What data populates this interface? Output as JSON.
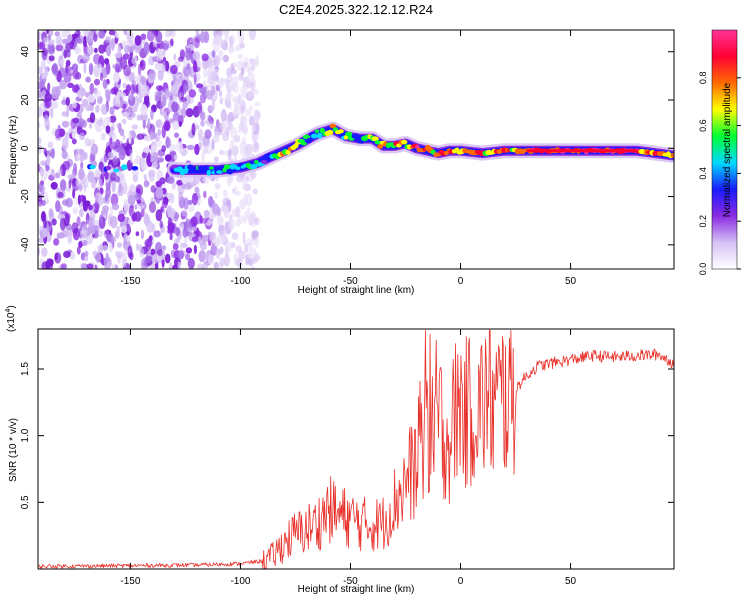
{
  "title": "C2E4.2025.322.12.12.R24",
  "chart_data": [
    {
      "type": "heatmap",
      "xlabel": "Height of straight line (km)",
      "ylabel": "Frequency (Hz)",
      "xlim": [
        -192,
        97
      ],
      "ylim": [
        -50,
        49
      ],
      "xticks": [
        -150,
        -100,
        -50,
        0,
        50
      ],
      "xtick_labels": [
        "-150",
        "-100",
        "-50",
        "0",
        "50"
      ],
      "yticks": [
        -40,
        -20,
        0,
        20,
        40
      ],
      "ytick_labels": [
        "-40",
        "-20",
        "0",
        "20",
        "40"
      ],
      "noise_region_x": [
        -192,
        -92
      ],
      "ridge": {
        "x": [
          -192,
          -170,
          -150,
          -125,
          -110,
          -100,
          -92,
          -85,
          -75,
          -65,
          -58,
          -52,
          -46,
          -40,
          -35,
          -30,
          -25,
          -20,
          -15,
          -10,
          -5,
          0,
          10,
          20,
          30,
          50,
          80,
          97
        ],
        "y": [
          -9,
          -8,
          -8,
          -9,
          -9,
          -8,
          -6,
          -3,
          1,
          6,
          8,
          5,
          4,
          4,
          1,
          1,
          2,
          0,
          -1,
          -2,
          -1,
          -1,
          -2,
          -1,
          -1,
          -1,
          -1,
          -3
        ]
      },
      "colorbar": {
        "label": "Normalized spectral amplitude",
        "range": [
          0,
          1
        ],
        "ticks": [
          0.0,
          0.2,
          0.4,
          0.6,
          0.8
        ],
        "tick_labels": [
          "0.0",
          "0.2",
          "0.4",
          "0.6",
          "0.8"
        ],
        "colors": [
          "#ffffff",
          "#d6c1f4",
          "#8a2be2",
          "#1a1aff",
          "#00d9ff",
          "#00ff33",
          "#ffff00",
          "#ff6a00",
          "#ff0033",
          "#ff3399"
        ]
      }
    },
    {
      "type": "line",
      "xlabel": "Height of straight line (km)",
      "ylabel": "SNR (10 * v/v)",
      "scale_label": "(x10",
      "scale_exponent": "4",
      "scale_close": ")",
      "xlim": [
        -192,
        97
      ],
      "ylim": [
        0,
        18000
      ],
      "xticks": [
        -150,
        -100,
        -50,
        0,
        50
      ],
      "xtick_labels": [
        "-150",
        "-100",
        "-50",
        "0",
        "50"
      ],
      "yticks": [
        5000,
        10000,
        15000
      ],
      "ytick_labels": [
        "0.5",
        "1.0",
        "1.5"
      ],
      "series_color": "#e8302a",
      "series": [
        {
          "name": "SNR",
          "x": [
            -192,
            -150,
            -120,
            -110,
            -100,
            -90,
            -85,
            -80,
            -75,
            -70,
            -65,
            -60,
            -55,
            -50,
            -45,
            -40,
            -35,
            -30,
            -25,
            -20,
            -17,
            -14,
            -12,
            -10,
            -8,
            -5,
            -2,
            0,
            3,
            6,
            9,
            12,
            15,
            20,
            25,
            30,
            35,
            40,
            50,
            60,
            70,
            80,
            90,
            97
          ],
          "y": [
            200,
            250,
            300,
            350,
            400,
            600,
            1000,
            2000,
            2600,
            3000,
            3400,
            4500,
            4000,
            3800,
            3400,
            3300,
            3500,
            5000,
            6500,
            8000,
            9800,
            10400,
            11200,
            11800,
            10400,
            9600,
            12000,
            12500,
            11500,
            12300,
            12000,
            13000,
            12200,
            13000,
            13500,
            14500,
            15200,
            15400,
            15700,
            16000,
            15900,
            16000,
            16100,
            15400
          ]
        }
      ]
    }
  ]
}
